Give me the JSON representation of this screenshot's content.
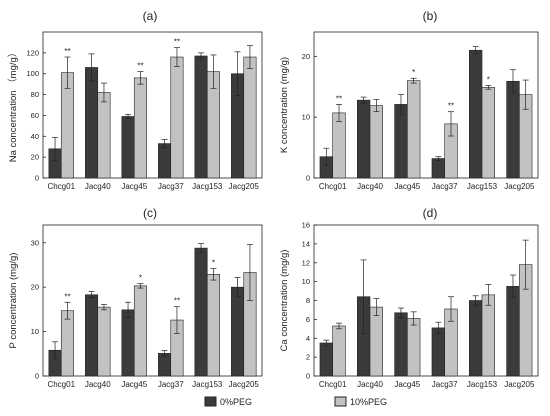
{
  "legend": {
    "items": [
      {
        "label": "0%PEG",
        "color": "#3b3b3b"
      },
      {
        "label": "10%PEG",
        "color": "#c2c2c2"
      }
    ]
  },
  "chart_data": [
    {
      "type": "bar",
      "panel_label": "(a)",
      "ylabel": "Na concentration （mg/g）",
      "ylim": [
        0,
        140
      ],
      "yticks": [
        0,
        20,
        40,
        60,
        80,
        100,
        120
      ],
      "categories": [
        "Chcg01",
        "Jacg40",
        "Jacg45",
        "Jacg37",
        "Jacg153",
        "Jacg205"
      ],
      "series": [
        {
          "name": "0%PEG",
          "values": [
            28,
            106,
            59,
            33,
            117,
            100
          ],
          "errors": [
            11,
            13,
            2,
            4,
            3,
            21
          ]
        },
        {
          "name": "10%PEG",
          "values": [
            101,
            82,
            96,
            116,
            102,
            116
          ],
          "errors": [
            15,
            9,
            6,
            9,
            16,
            11
          ]
        }
      ],
      "significance": [
        "**",
        "",
        "**",
        "**",
        "",
        ""
      ]
    },
    {
      "type": "bar",
      "panel_label": "(b)",
      "ylabel": "K concentration  (mg/g)",
      "ylim": [
        0,
        24
      ],
      "yticks": [
        0,
        10,
        20
      ],
      "categories": [
        "Chcg01",
        "Jacg40",
        "Jacg45",
        "Jacg37",
        "Jacg153",
        "Jacg205"
      ],
      "series": [
        {
          "name": "0%PEG",
          "values": [
            3.5,
            12.8,
            12.1,
            3.2,
            21.0,
            15.9
          ],
          "errors": [
            1.4,
            0.5,
            1.6,
            0.3,
            0.6,
            1.9
          ]
        },
        {
          "name": "10%PEG",
          "values": [
            10.7,
            11.9,
            16.0,
            8.9,
            14.9,
            13.7
          ],
          "errors": [
            1.4,
            1.0,
            0.4,
            2.0,
            0.3,
            2.4
          ]
        }
      ],
      "significance": [
        "**",
        "",
        "*",
        "**",
        "*",
        ""
      ]
    },
    {
      "type": "bar",
      "panel_label": "(c)",
      "ylabel": "P concentration  (mg/g)",
      "ylim": [
        0,
        34
      ],
      "yticks": [
        0,
        10,
        20,
        30
      ],
      "categories": [
        "Chcg01",
        "Jacg40",
        "Jacg45",
        "Jacg37",
        "Jacg153",
        "Jacg205"
      ],
      "series": [
        {
          "name": "0%PEG",
          "values": [
            5.8,
            18.3,
            14.9,
            5.1,
            28.8,
            20.0
          ],
          "errors": [
            1.9,
            0.7,
            1.7,
            0.6,
            1.0,
            2.2
          ]
        },
        {
          "name": "10%PEG",
          "values": [
            14.7,
            15.5,
            20.3,
            12.6,
            22.9,
            23.3
          ],
          "errors": [
            1.9,
            0.6,
            0.5,
            3.0,
            1.3,
            6.3
          ]
        }
      ],
      "significance": [
        "**",
        "",
        "*",
        "**",
        "*",
        ""
      ]
    },
    {
      "type": "bar",
      "panel_label": "(d)",
      "ylabel": "Ca concentration  (mg/g)",
      "ylim": [
        0,
        16
      ],
      "yticks": [
        0,
        2,
        4,
        6,
        8,
        10,
        12,
        14,
        16
      ],
      "categories": [
        "Chcg01",
        "Jacg40",
        "Jacg45",
        "Jacg37",
        "Jacg153",
        "Jacg205"
      ],
      "series": [
        {
          "name": "0%PEG",
          "values": [
            3.5,
            8.4,
            6.7,
            5.1,
            8.0,
            9.5
          ],
          "errors": [
            0.3,
            3.9,
            0.5,
            0.6,
            0.5,
            1.2
          ]
        },
        {
          "name": "10%PEG",
          "values": [
            5.3,
            7.3,
            6.1,
            7.1,
            8.6,
            11.8
          ],
          "errors": [
            0.3,
            0.9,
            0.7,
            1.3,
            1.1,
            2.6
          ]
        }
      ],
      "significance": [
        "",
        "",
        "",
        "",
        "",
        ""
      ]
    }
  ]
}
